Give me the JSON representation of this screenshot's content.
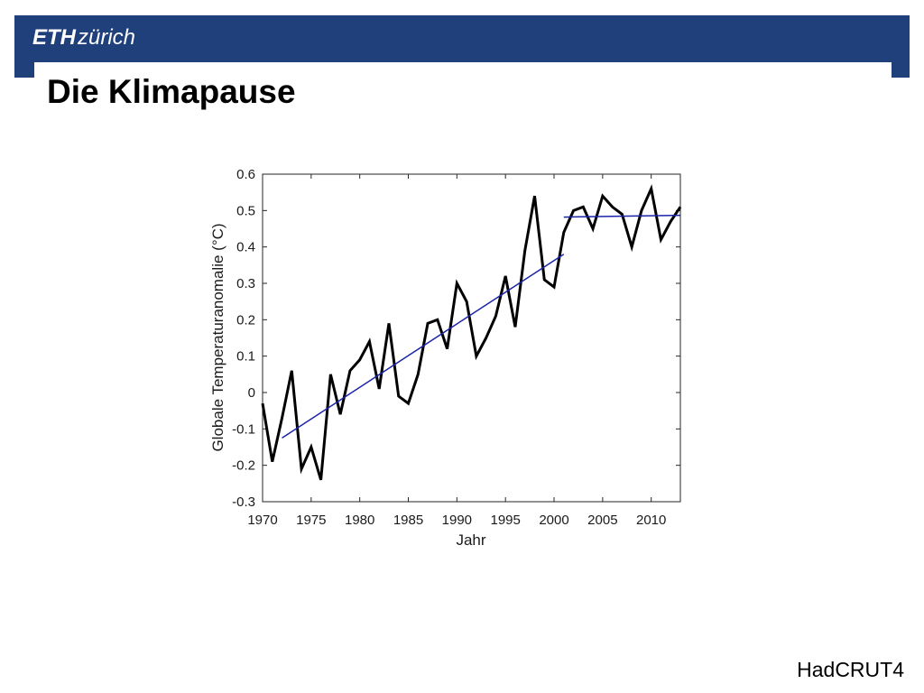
{
  "header": {
    "logo_eth": "ETH",
    "logo_zurich": "zürich",
    "brand_color": "#1f407a"
  },
  "slide": {
    "title": "Die Klimapause",
    "source": "HadCRUT4"
  },
  "chart_data": {
    "type": "line",
    "title": "",
    "xlabel": "Jahr",
    "ylabel": "Globale Temperaturanomalie (°C)",
    "xlim": [
      1970,
      2013
    ],
    "ylim": [
      -0.3,
      0.6
    ],
    "xticks": [
      1970,
      1975,
      1980,
      1985,
      1990,
      1995,
      2000,
      2005,
      2010
    ],
    "yticks": [
      -0.3,
      -0.2,
      -0.1,
      0,
      0.1,
      0.2,
      0.3,
      0.4,
      0.5,
      0.6
    ],
    "ytick_labels": [
      "-0.3",
      "-0.2",
      "-0.1",
      "0",
      "0.1",
      "0.2",
      "0.3",
      "0.4",
      "0.5",
      "0.6"
    ],
    "grid": false,
    "series": [
      {
        "color": "#000000",
        "x": [
          1970,
          1971,
          1972,
          1973,
          1974,
          1975,
          1976,
          1977,
          1978,
          1979,
          1980,
          1981,
          1982,
          1983,
          1984,
          1985,
          1986,
          1987,
          1988,
          1989,
          1990,
          1991,
          1992,
          1993,
          1994,
          1995,
          1996,
          1997,
          1998,
          1999,
          2000,
          2001,
          2002,
          2003,
          2004,
          2005,
          2006,
          2007,
          2008,
          2009,
          2010,
          2011,
          2012,
          2013
        ],
        "y": [
          -0.03,
          -0.19,
          -0.07,
          0.06,
          -0.21,
          -0.15,
          -0.24,
          0.05,
          -0.06,
          0.06,
          0.09,
          0.14,
          0.01,
          0.19,
          -0.01,
          -0.03,
          0.05,
          0.19,
          0.2,
          0.12,
          0.3,
          0.25,
          0.1,
          0.15,
          0.21,
          0.32,
          0.18,
          0.39,
          0.54,
          0.31,
          0.29,
          0.44,
          0.5,
          0.51,
          0.45,
          0.54,
          0.51,
          0.49,
          0.4,
          0.5,
          0.56,
          0.42,
          0.47,
          0.51
        ]
      },
      {
        "color": "#1a24a8",
        "x": [
          1972,
          2001
        ],
        "y": [
          -0.125,
          0.38
        ]
      },
      {
        "color": "#1a24a8",
        "x": [
          2001,
          2013
        ],
        "y": [
          0.482,
          0.487
        ]
      }
    ]
  }
}
